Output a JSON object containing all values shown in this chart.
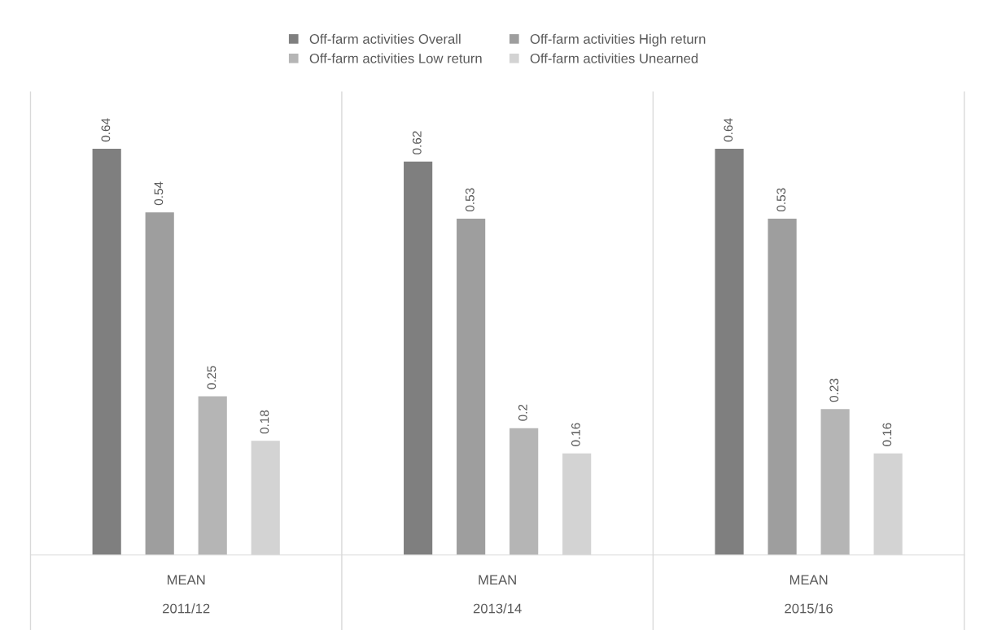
{
  "chart_data": {
    "type": "bar",
    "categories": [
      "2011/12",
      "2013/14",
      "2015/16"
    ],
    "series": [
      {
        "name": "Off-farm activities Overall",
        "color": "#7f7f7f",
        "values": [
          0.64,
          0.62,
          0.64
        ]
      },
      {
        "name": "Off-farm activities High return",
        "color": "#9e9e9e",
        "values": [
          0.54,
          0.53,
          0.53
        ]
      },
      {
        "name": "Off-farm activities Low return",
        "color": "#b5b5b5",
        "values": [
          0.25,
          0.2,
          0.23
        ]
      },
      {
        "name": "Off-farm activities Unearned",
        "color": "#d3d3d3",
        "values": [
          0.18,
          0.16,
          0.16
        ]
      }
    ],
    "annotations": [
      "MEAN",
      "MEAN",
      "MEAN"
    ],
    "data_labels": true,
    "legend": "top",
    "tick_labels": "x"
  }
}
